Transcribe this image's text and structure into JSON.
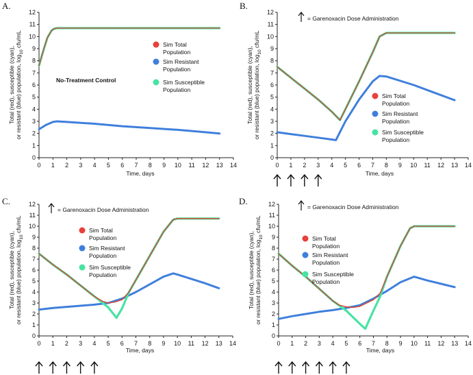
{
  "chart_data": [
    {
      "type": "line",
      "panel_label": "A.",
      "xlabel": "Time, days",
      "ylabel_line1": "Total (red), susceptible (cyan),",
      "ylabel_line2": "or resistant (blue) population, log",
      "ylabel_sub": "10",
      "ylabel_unit": " cfu/mL",
      "xlim": [
        0,
        14
      ],
      "ylim": [
        0,
        12
      ],
      "xticks": [
        "0",
        "1",
        "2",
        "3",
        "4",
        "5",
        "6",
        "7",
        "8",
        "9",
        "10",
        "11",
        "12",
        "13",
        "14"
      ],
      "yticks": [
        "0",
        "1",
        "2",
        "3",
        "4",
        "5",
        "6",
        "7",
        "8",
        "9",
        "10",
        "11",
        "12"
      ],
      "annotation": "No-Treatment Control",
      "dose_note": "",
      "dose_days": [],
      "series": [
        {
          "name": "Sim Total Population",
          "color": "#e8403a",
          "x": [
            0,
            0.3,
            0.6,
            0.9,
            1.1,
            1.3,
            2,
            4,
            6,
            8,
            10,
            13
          ],
          "y": [
            7.6,
            8.8,
            9.9,
            10.5,
            10.65,
            10.7,
            10.7,
            10.7,
            10.7,
            10.7,
            10.7,
            10.7
          ]
        },
        {
          "name": "Sim Resistant Population",
          "color": "#3f7fdc",
          "x": [
            0,
            0.5,
            1,
            1.3,
            2,
            4,
            6,
            8,
            10,
            12,
            13
          ],
          "y": [
            2.35,
            2.7,
            2.95,
            3.0,
            2.95,
            2.8,
            2.6,
            2.45,
            2.3,
            2.1,
            2.0
          ]
        },
        {
          "name": "Sim Susceptible Population",
          "color": "#48e3a3",
          "x": [
            0,
            0.3,
            0.6,
            0.9,
            1.1,
            1.3,
            2,
            4,
            6,
            8,
            10,
            13
          ],
          "y": [
            7.6,
            8.8,
            9.9,
            10.5,
            10.65,
            10.7,
            10.7,
            10.7,
            10.7,
            10.7,
            10.7,
            10.7
          ]
        }
      ]
    },
    {
      "type": "line",
      "panel_label": "B.",
      "xlabel": "Time, days",
      "ylabel_line1": "Total (red), susceptible (cyan),",
      "ylabel_line2": "or resistant (blue) population, log",
      "ylabel_sub": "10",
      "ylabel_unit": " cfu/mL",
      "xlim": [
        0,
        14
      ],
      "ylim": [
        0,
        12
      ],
      "xticks": [
        "0",
        "1",
        "2",
        "3",
        "4",
        "5",
        "6",
        "7",
        "8",
        "9",
        "10",
        "11",
        "12",
        "13",
        "14"
      ],
      "yticks": [
        "0",
        "1",
        "2",
        "3",
        "4",
        "5",
        "6",
        "7",
        "8",
        "9",
        "10",
        "11",
        "12"
      ],
      "annotation": "",
      "dose_note": "= Garenoxacin Dose Administration",
      "dose_days": [
        0,
        1,
        2,
        3
      ],
      "series": [
        {
          "name": "Sim Total Population",
          "color": "#e8403a",
          "x": [
            0,
            1,
            2,
            3,
            4,
            4.6,
            5,
            6,
            7,
            7.5,
            8,
            10,
            13
          ],
          "y": [
            7.5,
            6.6,
            5.7,
            4.8,
            3.8,
            3.1,
            4.0,
            6.3,
            8.7,
            10.0,
            10.3,
            10.3,
            10.3
          ]
        },
        {
          "name": "Sim Resistant Population",
          "color": "#3f7fdc",
          "x": [
            0,
            1,
            2,
            3,
            4,
            4.3,
            5,
            6,
            7,
            7.5,
            8,
            10,
            13
          ],
          "y": [
            2.1,
            1.95,
            1.8,
            1.65,
            1.5,
            1.45,
            3.0,
            4.8,
            6.3,
            6.75,
            6.7,
            6.0,
            4.75
          ]
        },
        {
          "name": "Sim Susceptible Population",
          "color": "#48e3a3",
          "x": [
            0,
            1,
            2,
            3,
            4,
            4.6,
            5,
            6,
            7,
            7.5,
            8,
            10,
            13
          ],
          "y": [
            7.5,
            6.6,
            5.7,
            4.8,
            3.8,
            3.1,
            4.0,
            6.3,
            8.7,
            10.0,
            10.3,
            10.3,
            10.3
          ]
        }
      ]
    },
    {
      "type": "line",
      "panel_label": "C.",
      "xlabel": "Time, days",
      "ylabel_line1": "Total (red), susceptible (cyan),",
      "ylabel_line2": "or resistant (blue) population, log",
      "ylabel_sub": "10",
      "ylabel_unit": " cfu/mL",
      "xlim": [
        0,
        14
      ],
      "ylim": [
        0,
        12
      ],
      "xticks": [
        "0",
        "1",
        "2",
        "3",
        "4",
        "5",
        "6",
        "7",
        "8",
        "9",
        "10",
        "11",
        "12",
        "13",
        "14"
      ],
      "yticks": [
        "0",
        "1",
        "2",
        "3",
        "4",
        "5",
        "6",
        "7",
        "8",
        "9",
        "10",
        "11",
        "12"
      ],
      "annotation": "",
      "dose_note": "= Garenoxacin Dose Administration",
      "dose_days": [
        0,
        1,
        2,
        3,
        4
      ],
      "series": [
        {
          "name": "Sim Total Population",
          "color": "#e8403a",
          "x": [
            0,
            1,
            2,
            3,
            4,
            4.6,
            5,
            5.5,
            6,
            6.5,
            7,
            8,
            9,
            9.7,
            10,
            13
          ],
          "y": [
            7.5,
            6.5,
            5.6,
            4.6,
            3.6,
            3.15,
            3.0,
            3.1,
            3.3,
            4.0,
            5.1,
            7.3,
            9.5,
            10.6,
            10.7,
            10.7
          ]
        },
        {
          "name": "Sim Resistant Population",
          "color": "#3f7fdc",
          "x": [
            0,
            1,
            2,
            3,
            4,
            5,
            6,
            7,
            8,
            9,
            9.7,
            10,
            11,
            12,
            13
          ],
          "y": [
            2.4,
            2.55,
            2.65,
            2.75,
            2.85,
            3.0,
            3.4,
            4.0,
            4.7,
            5.4,
            5.7,
            5.6,
            5.2,
            4.8,
            4.35
          ]
        },
        {
          "name": "Sim Susceptible Population",
          "color": "#48e3a3",
          "x": [
            0,
            1,
            2,
            3,
            4,
            5,
            5.6,
            6,
            6.5,
            7,
            8,
            9,
            9.7,
            10,
            13
          ],
          "y": [
            7.5,
            6.5,
            5.6,
            4.6,
            3.6,
            2.6,
            1.65,
            2.5,
            4.0,
            5.1,
            7.3,
            9.5,
            10.6,
            10.7,
            10.7
          ]
        }
      ]
    },
    {
      "type": "line",
      "panel_label": "D.",
      "xlabel": "Time, days",
      "ylabel_line1": "Total (red), susceptible (cyan),",
      "ylabel_line2": "or resistant (blue) population, log",
      "ylabel_sub": "10",
      "ylabel_unit": " cfu/mL",
      "xlim": [
        0,
        14
      ],
      "ylim": [
        0,
        12
      ],
      "xticks": [
        "0",
        "1",
        "2",
        "3",
        "4",
        "5",
        "6",
        "7",
        "8",
        "9",
        "10",
        "11",
        "12",
        "13",
        "14"
      ],
      "yticks": [
        "0",
        "1",
        "2",
        "3",
        "4",
        "5",
        "6",
        "7",
        "8",
        "9",
        "10",
        "11",
        "12"
      ],
      "annotation": "",
      "dose_note": "= Garenoxacin Dose Administration",
      "dose_days": [
        0,
        1,
        2,
        3,
        4,
        5
      ],
      "series": [
        {
          "name": "Sim Total Population",
          "color": "#e8403a",
          "x": [
            0,
            1,
            2,
            3,
            4,
            4.5,
            5,
            5.5,
            6,
            6.5,
            7,
            7.5,
            8,
            9,
            9.7,
            10,
            13
          ],
          "y": [
            7.5,
            6.4,
            5.4,
            4.3,
            3.2,
            2.8,
            2.65,
            2.6,
            2.7,
            3.0,
            3.3,
            3.9,
            5.4,
            8.2,
            9.8,
            10.0,
            10.0
          ]
        },
        {
          "name": "Sim Resistant Population",
          "color": "#3f7fdc",
          "x": [
            0,
            1,
            2,
            3,
            4,
            5,
            6,
            7,
            8,
            9,
            10,
            11,
            12,
            13
          ],
          "y": [
            1.55,
            1.8,
            2.0,
            2.2,
            2.35,
            2.55,
            2.8,
            3.4,
            4.1,
            4.9,
            5.4,
            5.05,
            4.75,
            4.45
          ]
        },
        {
          "name": "Sim Susceptible Population",
          "color": "#48e3a3",
          "x": [
            0,
            1,
            2,
            3,
            4,
            5,
            6,
            6.4,
            7,
            7.5,
            8,
            9,
            9.7,
            10,
            13
          ],
          "y": [
            7.5,
            6.4,
            5.4,
            4.3,
            3.2,
            2.3,
            1.1,
            0.65,
            2.3,
            3.6,
            5.4,
            8.2,
            9.8,
            10.0,
            10.0
          ]
        }
      ]
    }
  ]
}
